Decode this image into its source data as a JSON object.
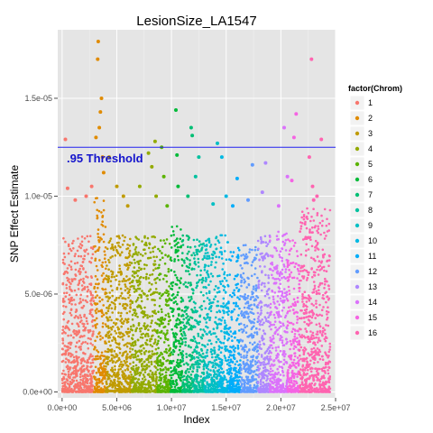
{
  "chart_data": {
    "type": "scatter",
    "title": "LesionSize_LA1547",
    "xlabel": "Index",
    "ylabel": "SNP Effect Estimate",
    "xlim": [
      -400000,
      25000000
    ],
    "ylim": [
      -3e-07,
      1.85e-05
    ],
    "x_ticks": [
      0,
      5000000,
      10000000,
      15000000,
      20000000,
      25000000
    ],
    "x_tick_labels": [
      "0.0e+00",
      "5.0e+06",
      "1.0e+07",
      "1.5e+07",
      "2.0e+07",
      "2.5e+07"
    ],
    "y_ticks": [
      0,
      5e-06,
      1e-05,
      1.5e-05
    ],
    "y_tick_labels": [
      "0.0e+00",
      "5.0e-06",
      "1.0e-05",
      "1.5e-05"
    ],
    "grid": true,
    "legend": {
      "title": "factor(Chrom)",
      "position": "right",
      "entries": [
        "1",
        "2",
        "3",
        "4",
        "5",
        "6",
        "7",
        "8",
        "9",
        "10",
        "11",
        "12",
        "13",
        "14",
        "15",
        "16"
      ]
    },
    "threshold": {
      "y": 1.25e-05,
      "label": ".95 Threshold",
      "color": "#2222ee"
    },
    "series": [
      {
        "name": "1",
        "color": "#F8766D",
        "x_range": [
          0,
          2900000
        ],
        "base_max": 8e-06,
        "outliers": [
          [
            300000,
            1.29e-05
          ],
          [
            1200000,
            9.8e-06
          ],
          [
            2200000,
            1e-05
          ],
          [
            2700000,
            1.05e-05
          ],
          [
            500000,
            1.04e-05
          ]
        ]
      },
      {
        "name": "2",
        "color": "#E08B00",
        "x_range": [
          2900000,
          4000000
        ],
        "base_max": 1e-05,
        "outliers": [
          [
            3300000,
            1.79e-05
          ],
          [
            3250000,
            1.7e-05
          ],
          [
            3600000,
            1.5e-05
          ],
          [
            3500000,
            1.43e-05
          ],
          [
            3400000,
            1.35e-05
          ],
          [
            3100000,
            1.3e-05
          ],
          [
            3700000,
            1.2e-05
          ],
          [
            3800000,
            1.12e-05
          ]
        ]
      },
      {
        "name": "3",
        "color": "#C09B00",
        "x_range": [
          4000000,
          6300000
        ],
        "base_max": 8e-06,
        "outliers": [
          [
            4300000,
            1.2e-05
          ],
          [
            5000000,
            1.05e-05
          ],
          [
            5600000,
            1e-05
          ],
          [
            6000000,
            9.5e-06
          ]
        ]
      },
      {
        "name": "4",
        "color": "#93AA00",
        "x_range": [
          6300000,
          8700000
        ],
        "base_max": 8e-06,
        "outliers": [
          [
            8500000,
            1.28e-05
          ],
          [
            7900000,
            1.22e-05
          ],
          [
            7100000,
            1.05e-05
          ],
          [
            8200000,
            1.15e-05
          ],
          [
            8600000,
            1e-05
          ]
        ]
      },
      {
        "name": "5",
        "color": "#5BB300",
        "x_range": [
          8700000,
          9900000
        ],
        "base_max": 7.8e-06,
        "outliers": [
          [
            9100000,
            1.25e-05
          ],
          [
            9300000,
            1.1e-05
          ],
          [
            9600000,
            9.5e-06
          ]
        ]
      },
      {
        "name": "6",
        "color": "#00BA38",
        "x_range": [
          9900000,
          11000000
        ],
        "base_max": 8.5e-06,
        "outliers": [
          [
            10400000,
            1.44e-05
          ],
          [
            10500000,
            1.21e-05
          ],
          [
            10600000,
            1.05e-05
          ]
        ]
      },
      {
        "name": "7",
        "color": "#00BF74",
        "x_range": [
          11000000,
          12000000
        ],
        "base_max": 8e-06,
        "outliers": [
          [
            11800000,
            1.35e-05
          ],
          [
            11900000,
            1.31e-05
          ],
          [
            11500000,
            1e-05
          ]
        ]
      },
      {
        "name": "8",
        "color": "#00C19F",
        "x_range": [
          12000000,
          13000000
        ],
        "base_max": 7.8e-06,
        "outliers": [
          [
            12500000,
            1.2e-05
          ],
          [
            12200000,
            1.1e-05
          ]
        ]
      },
      {
        "name": "9",
        "color": "#00BFC4",
        "x_range": [
          13000000,
          14300000
        ],
        "base_max": 8e-06,
        "outliers": [
          [
            14200000,
            1.27e-05
          ],
          [
            13800000,
            9.6e-06
          ]
        ]
      },
      {
        "name": "10",
        "color": "#00B9E3",
        "x_range": [
          14300000,
          15200000
        ],
        "base_max": 8.2e-06,
        "outliers": [
          [
            14600000,
            1.2e-05
          ],
          [
            15000000,
            1e-05
          ]
        ]
      },
      {
        "name": "11",
        "color": "#00ADFA",
        "x_range": [
          15200000,
          16300000
        ],
        "base_max": 7.5e-06,
        "outliers": [
          [
            16000000,
            1.09e-05
          ],
          [
            15600000,
            9.5e-06
          ]
        ]
      },
      {
        "name": "12",
        "color": "#619CFF",
        "x_range": [
          16300000,
          17900000
        ],
        "base_max": 7.5e-06,
        "outliers": [
          [
            17400000,
            1.16e-05
          ],
          [
            17000000,
            9.8e-06
          ]
        ]
      },
      {
        "name": "13",
        "color": "#AE87FF",
        "x_range": [
          17900000,
          19000000
        ],
        "base_max": 8e-06,
        "outliers": [
          [
            18600000,
            1.17e-05
          ],
          [
            18300000,
            1.02e-05
          ]
        ]
      },
      {
        "name": "14",
        "color": "#DB72FB",
        "x_range": [
          19000000,
          20600000
        ],
        "base_max": 8.2e-06,
        "outliers": [
          [
            20300000,
            1.35e-05
          ],
          [
            20600000,
            1.1e-05
          ],
          [
            19800000,
            9.5e-06
          ]
        ]
      },
      {
        "name": "15",
        "color": "#F564E3",
        "x_range": [
          20600000,
          21700000
        ],
        "base_max": 8e-06,
        "outliers": [
          [
            21400000,
            1.42e-05
          ],
          [
            21200000,
            1.3e-05
          ],
          [
            21000000,
            1.08e-05
          ]
        ]
      },
      {
        "name": "16",
        "color": "#FF64B0",
        "x_range": [
          21700000,
          24500000
        ],
        "base_max": 9.5e-06,
        "outliers": [
          [
            22800000,
            1.7e-05
          ],
          [
            23700000,
            1.29e-05
          ],
          [
            22600000,
            1.2e-05
          ],
          [
            22900000,
            1.05e-05
          ],
          [
            23300000,
            1e-05
          ],
          [
            23000000,
            9.8e-06
          ]
        ]
      }
    ]
  }
}
